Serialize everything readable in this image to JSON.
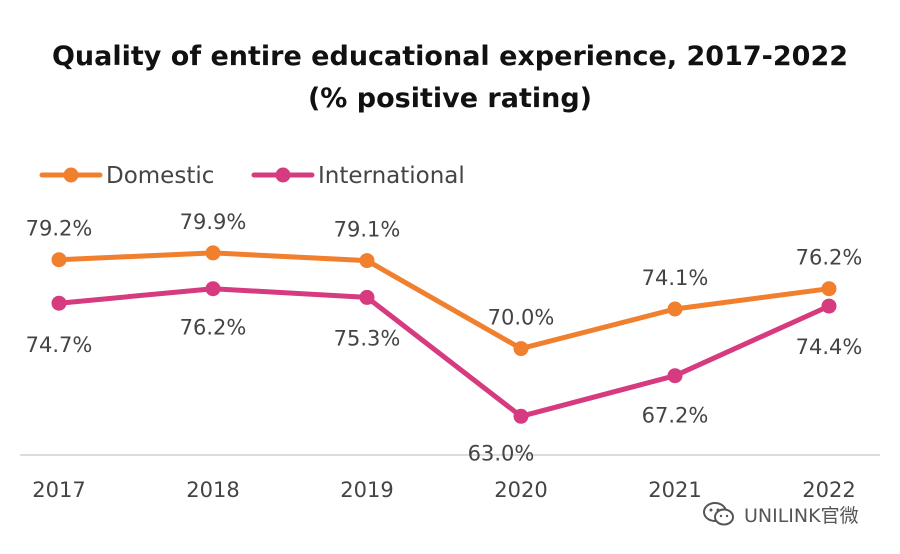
{
  "chart_data": {
    "type": "line",
    "title_line1": "Quality of entire educational experience, 2017-2022",
    "title_line2": "(% positive rating)",
    "categories": [
      "2017",
      "2018",
      "2019",
      "2020",
      "2021",
      "2022"
    ],
    "series": [
      {
        "name": "Domestic",
        "color": "#f07f2e",
        "values": [
          79.2,
          79.9,
          79.1,
          70.0,
          74.1,
          76.2
        ],
        "labels": [
          "79.2%",
          "79.9%",
          "79.1%",
          "70.0%",
          "74.1%",
          "76.2%"
        ]
      },
      {
        "name": "International",
        "color": "#d63b7f",
        "values": [
          74.7,
          76.2,
          75.3,
          63.0,
          67.2,
          74.4
        ],
        "labels": [
          "74.7%",
          "76.2%",
          "75.3%",
          "63.0%",
          "67.2%",
          "74.4%"
        ]
      }
    ],
    "ylim": [
      59,
      91
    ],
    "xlabel": "",
    "ylabel": "",
    "grid": false,
    "legend_position": "top-left"
  },
  "watermark": {
    "text": "UNILINK官微",
    "icon": "wechat-icon"
  }
}
